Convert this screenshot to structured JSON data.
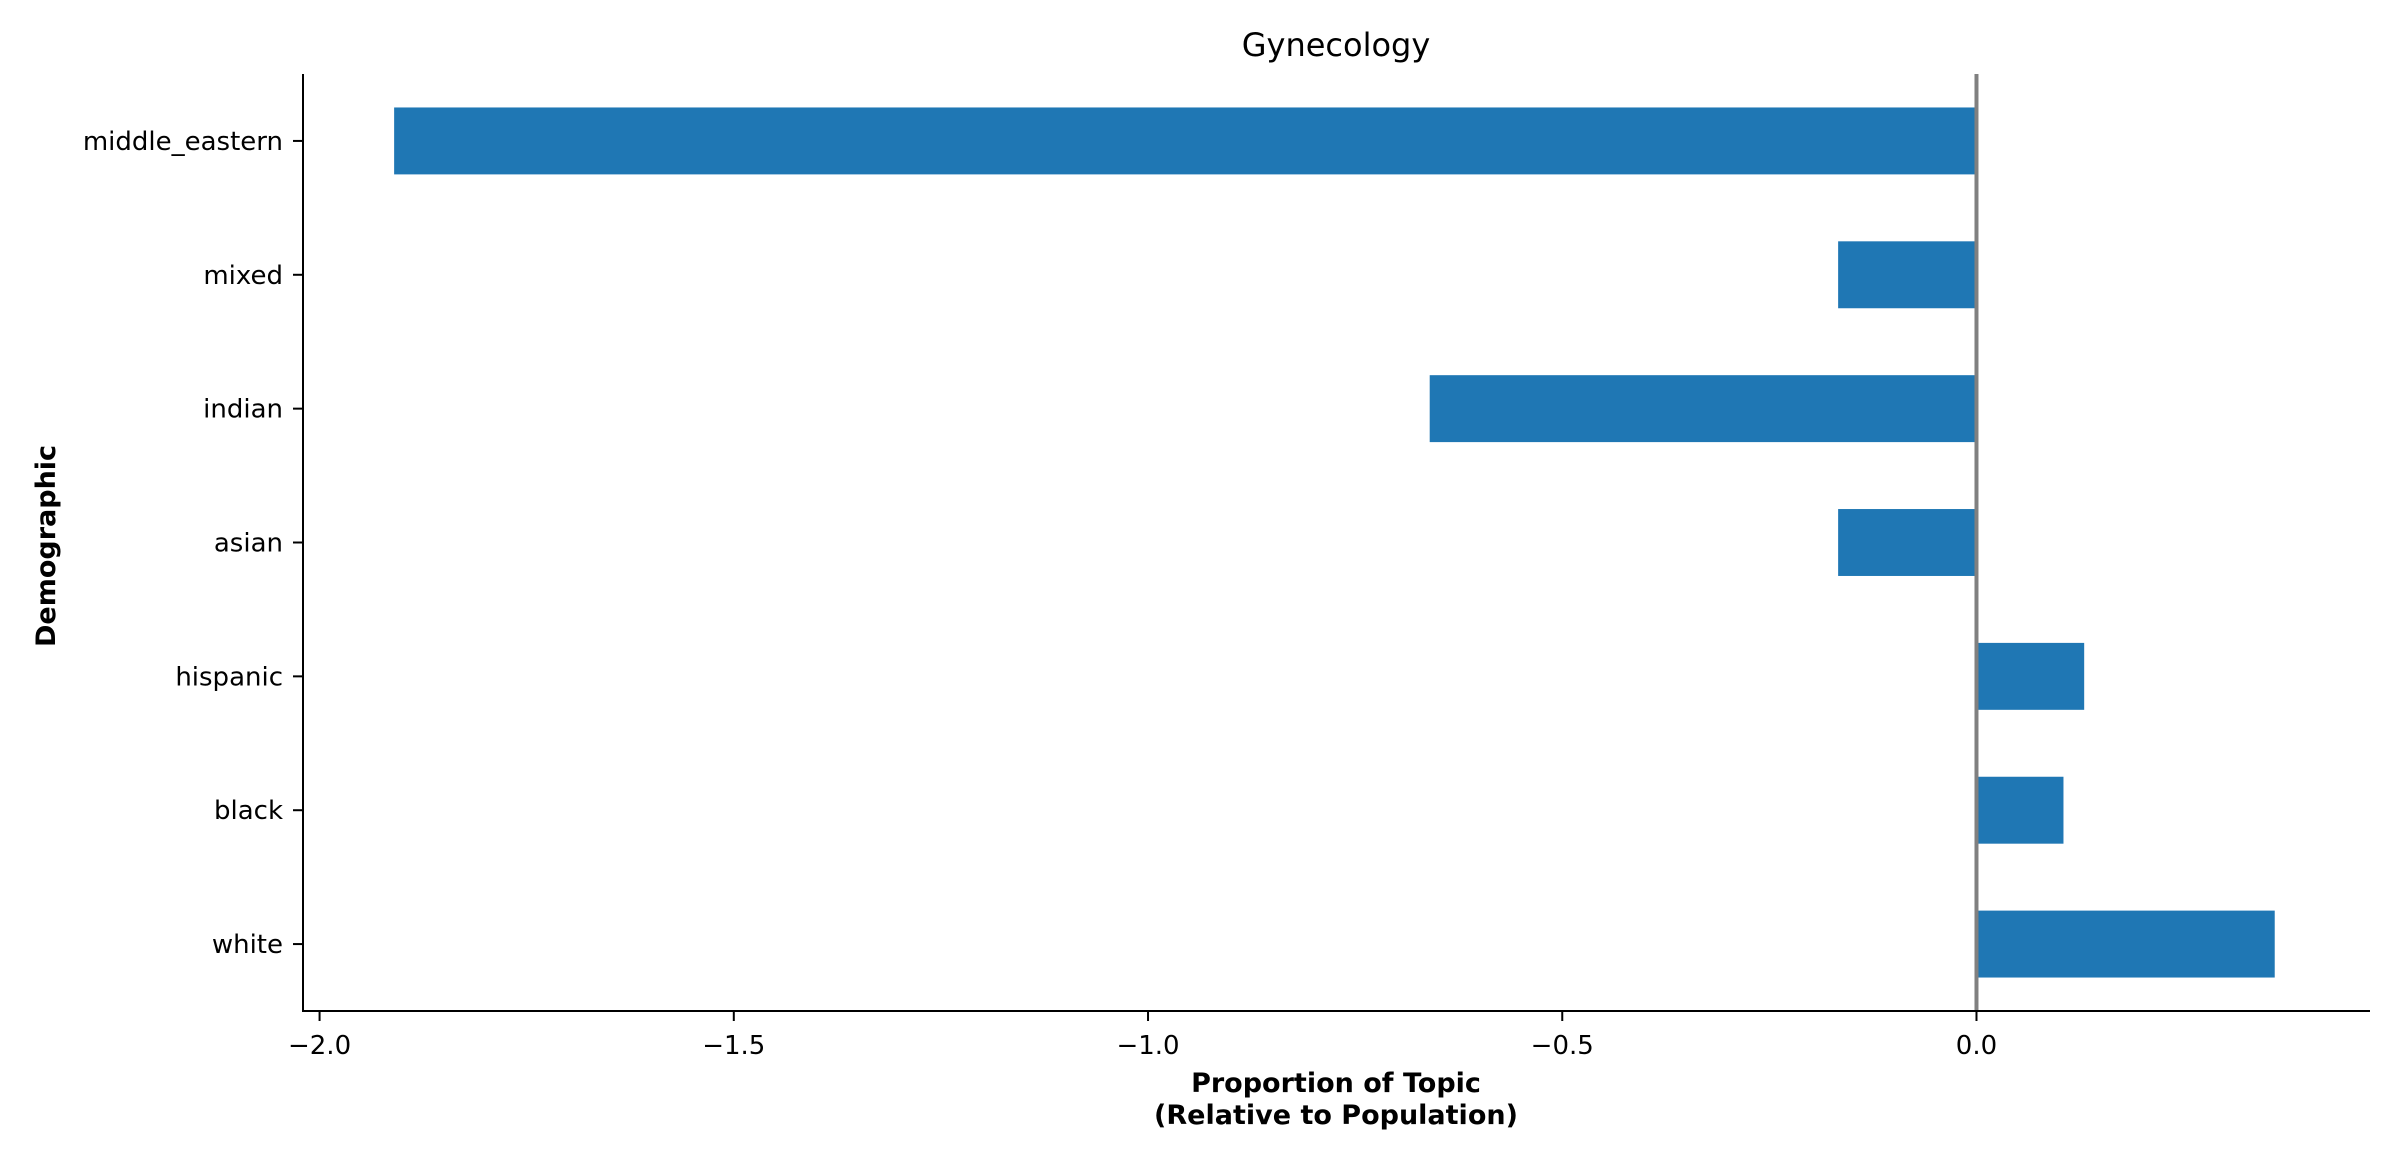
{
  "chart_data": {
    "type": "bar",
    "orientation": "horizontal",
    "title": "Gynecology",
    "xlabel_lines": [
      "Proportion of Topic",
      "(Relative to Population)"
    ],
    "ylabel": "Demographic",
    "categories": [
      "middle_eastern",
      "mixed",
      "indian",
      "asian",
      "hispanic",
      "black",
      "white"
    ],
    "values": [
      -1.91,
      -0.167,
      -0.66,
      -0.167,
      0.13,
      0.105,
      0.36
    ],
    "xlim": [
      -2.02,
      0.475
    ],
    "xticks": [
      -2.0,
      -1.5,
      -1.0,
      -0.5,
      0.0
    ],
    "xtick_labels": [
      "−2.0",
      "−1.5",
      "−1.0",
      "−0.5",
      "0.0"
    ],
    "zero_line": true,
    "grid": false,
    "bar_color": "#1f77b4",
    "zero_line_color": "#808080"
  }
}
